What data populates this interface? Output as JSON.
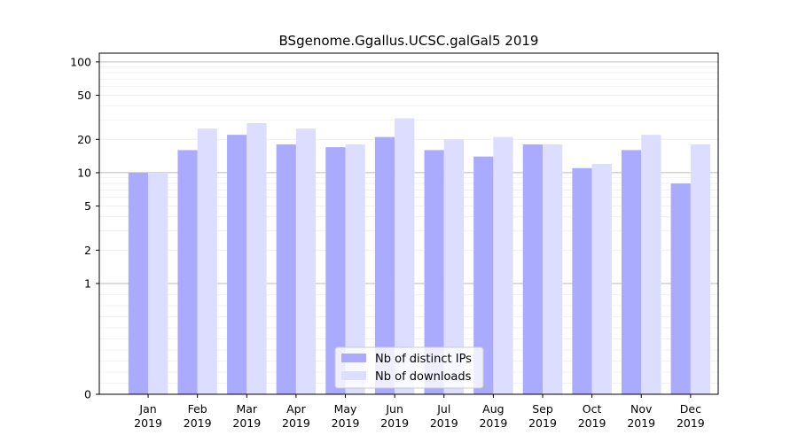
{
  "chart_data": {
    "type": "bar",
    "title": "BSgenome.Ggallus.UCSC.galGal5 2019",
    "xlabel": "",
    "ylabel": "",
    "y_scale": "symlog",
    "ylim": [
      0,
      120
    ],
    "y_ticks": [
      0,
      1,
      2,
      5,
      10,
      20,
      50,
      100
    ],
    "y_tick_labels": [
      "0",
      "1",
      "2",
      "5",
      "10",
      "20",
      "50",
      "100"
    ],
    "grid": true,
    "legend_position": "bottom-center",
    "categories": [
      [
        "Jan",
        "2019"
      ],
      [
        "Feb",
        "2019"
      ],
      [
        "Mar",
        "2019"
      ],
      [
        "Apr",
        "2019"
      ],
      [
        "May",
        "2019"
      ],
      [
        "Jun",
        "2019"
      ],
      [
        "Jul",
        "2019"
      ],
      [
        "Aug",
        "2019"
      ],
      [
        "Sep",
        "2019"
      ],
      [
        "Oct",
        "2019"
      ],
      [
        "Nov",
        "2019"
      ],
      [
        "Dec",
        "2019"
      ]
    ],
    "series": [
      {
        "name": "Nb of distinct IPs",
        "color": "#aaaaff",
        "values": [
          10,
          16,
          22,
          18,
          17,
          21,
          16,
          14,
          18,
          11,
          16,
          8
        ]
      },
      {
        "name": "Nb of downloads",
        "color": "#ddddff",
        "values": [
          10,
          25,
          28,
          25,
          18,
          31,
          20,
          21,
          18,
          12,
          22,
          18
        ]
      }
    ]
  }
}
